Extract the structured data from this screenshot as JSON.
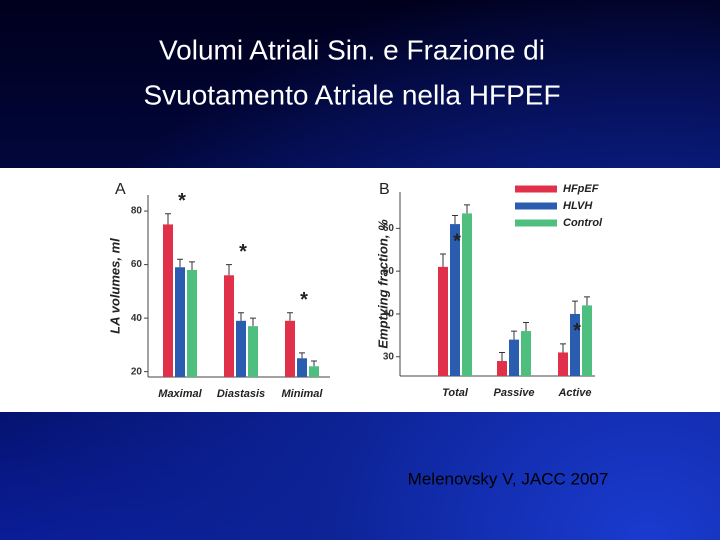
{
  "slide": {
    "title": [
      "Volumi Atriali Sin. e Frazione di",
      "Svuotamento Atriale nella HFPEF"
    ],
    "citation": "Melenovsky V, JACC 2007"
  },
  "chart_data": [
    {
      "type": "bar",
      "panel": "A",
      "y_label": "LA volumes, ml",
      "categories": [
        "Maximal",
        "Diastasis",
        "Minimal"
      ],
      "series": [
        {
          "color": "#e0304a",
          "values": [
            75,
            56,
            39
          ],
          "errors": [
            4,
            4,
            3
          ]
        },
        {
          "color": "#2a5cb0",
          "values": [
            59,
            39,
            25
          ],
          "errors": [
            3,
            3,
            2
          ]
        },
        {
          "color": "#4fbf80",
          "values": [
            58,
            37,
            22
          ],
          "errors": [
            3,
            3,
            2
          ]
        }
      ],
      "ylim": [
        18,
        86
      ],
      "yticks": [
        20,
        40,
        60,
        80
      ],
      "legend": false,
      "annotations": [
        {
          "text": "*",
          "category": "Maximal"
        },
        {
          "text": "*",
          "category": "Diastasis"
        },
        {
          "text": "*",
          "category": "Minimal"
        }
      ]
    },
    {
      "type": "bar",
      "panel": "B",
      "y_label": "Emptying fraction, %",
      "categories": [
        "Total",
        "Passive",
        "Active"
      ],
      "series": [
        {
          "name": "HFpEF",
          "color": "#e0304a",
          "values": [
            51,
            29,
            31
          ],
          "errors": [
            3,
            2,
            2
          ]
        },
        {
          "name": "HLVH",
          "color": "#2a5cb0",
          "values": [
            61,
            34,
            40
          ],
          "errors": [
            2,
            2,
            3
          ]
        },
        {
          "name": "Control",
          "color": "#4fbf80",
          "values": [
            63.5,
            36,
            42
          ],
          "errors": [
            2,
            2,
            2
          ]
        }
      ],
      "ylim": [
        25.5,
        68.5
      ],
      "yticks": [
        30,
        40,
        50,
        60
      ],
      "legend": "upper right",
      "annotations": [
        {
          "text": "*",
          "category": "Total"
        },
        {
          "text": "*",
          "category": "Active"
        }
      ]
    }
  ]
}
